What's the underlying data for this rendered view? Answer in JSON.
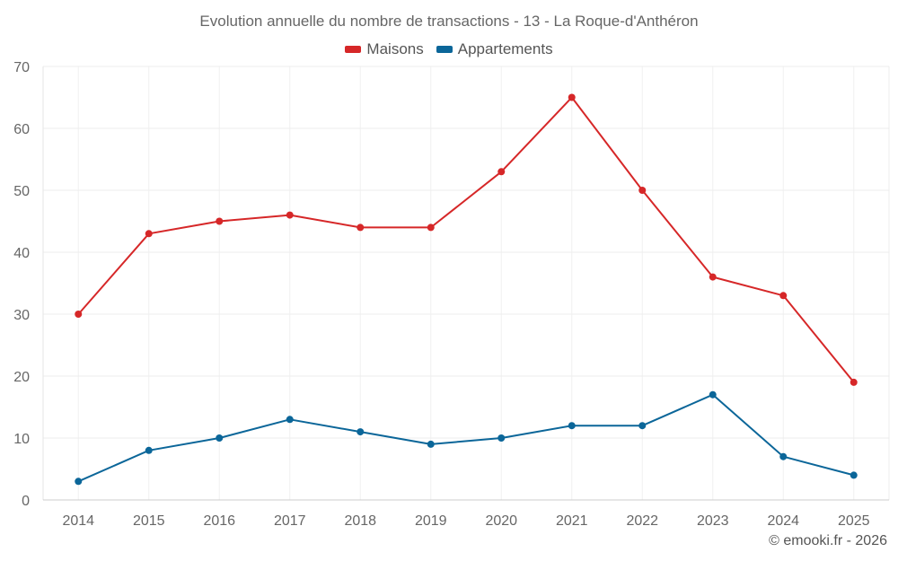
{
  "colors": {
    "maisons": "#d62728",
    "appartements": "#0b6699"
  },
  "footer": {
    "credit": "© emooki.fr - 2026"
  },
  "chart_data": {
    "type": "line",
    "title": "Evolution annuelle du nombre de transactions - 13 - La Roque-d'Anthéron",
    "xlabel": "",
    "ylabel": "",
    "ylim": [
      0,
      70
    ],
    "yticks": [
      0,
      10,
      20,
      30,
      40,
      50,
      60,
      70
    ],
    "grid": true,
    "legend_position": "top-center",
    "categories": [
      "2014",
      "2015",
      "2016",
      "2017",
      "2018",
      "2019",
      "2020",
      "2021",
      "2022",
      "2023",
      "2024",
      "2025"
    ],
    "series": [
      {
        "name": "Maisons",
        "color": "#d62728",
        "values": [
          30,
          43,
          45,
          46,
          44,
          44,
          53,
          65,
          50,
          36,
          33,
          19
        ]
      },
      {
        "name": "Appartements",
        "color": "#0b6699",
        "values": [
          3,
          8,
          10,
          13,
          11,
          9,
          10,
          12,
          12,
          17,
          7,
          4
        ]
      }
    ]
  }
}
